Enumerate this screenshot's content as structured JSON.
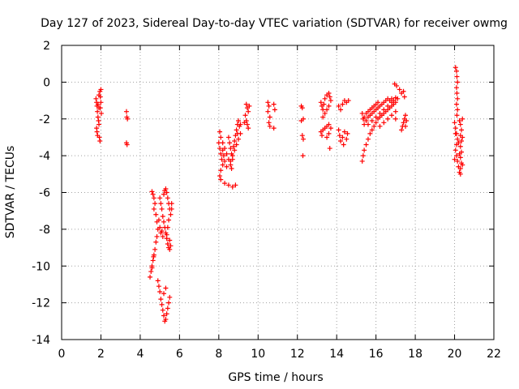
{
  "chart_data": {
    "type": "scatter",
    "title": "Day 127 of 2023, Sidereal Day-to-day VTEC variation (SDTVAR) for receiver owmg",
    "xlabel": "GPS time / hours",
    "ylabel": "SDTVAR / TECUs",
    "xlim": [
      0,
      22
    ],
    "ylim": [
      -14,
      2
    ],
    "xticks": [
      0,
      2,
      4,
      6,
      8,
      10,
      12,
      14,
      16,
      18,
      20,
      22
    ],
    "yticks": [
      2,
      0,
      -2,
      -4,
      -6,
      -8,
      -10,
      -12,
      -14
    ],
    "grid": true,
    "marker": "+",
    "series": [
      {
        "name": "SDTVAR",
        "color": "#ff0000",
        "points": [
          [
            1.75,
            -0.9
          ],
          [
            1.78,
            -1.1
          ],
          [
            1.8,
            -1.3
          ],
          [
            1.82,
            -1.6
          ],
          [
            1.85,
            -1.9
          ],
          [
            1.88,
            -2.1
          ],
          [
            1.9,
            -2.3
          ],
          [
            1.78,
            -2.5
          ],
          [
            1.8,
            -2.7
          ],
          [
            1.83,
            -2.9
          ],
          [
            1.9,
            -0.7
          ],
          [
            1.95,
            -0.5
          ],
          [
            2.0,
            -0.4
          ],
          [
            1.97,
            -0.8
          ],
          [
            2.0,
            -1.1
          ],
          [
            1.97,
            -1.4
          ],
          [
            2.02,
            -1.7
          ],
          [
            1.92,
            -3.0
          ],
          [
            1.95,
            -3.2
          ],
          [
            1.9,
            -1.4
          ],
          [
            1.85,
            -1.2
          ],
          [
            3.3,
            -1.6
          ],
          [
            3.32,
            -1.9
          ],
          [
            3.35,
            -2.0
          ],
          [
            3.3,
            -3.3
          ],
          [
            3.33,
            -3.4
          ],
          [
            4.6,
            -5.95
          ],
          [
            4.65,
            -6.1
          ],
          [
            4.7,
            -6.3
          ],
          [
            4.75,
            -6.6
          ],
          [
            4.7,
            -6.9
          ],
          [
            4.8,
            -7.2
          ],
          [
            4.85,
            -7.6
          ],
          [
            4.9,
            -8.0
          ],
          [
            4.85,
            -8.4
          ],
          [
            4.8,
            -8.7
          ],
          [
            4.75,
            -9.1
          ],
          [
            4.7,
            -9.4
          ],
          [
            4.65,
            -9.7
          ],
          [
            4.6,
            -10.0
          ],
          [
            4.55,
            -10.3
          ],
          [
            4.5,
            -10.6
          ],
          [
            4.6,
            -10.1
          ],
          [
            4.68,
            -9.5
          ],
          [
            4.9,
            -10.8
          ],
          [
            4.95,
            -11.1
          ],
          [
            5.0,
            -11.4
          ],
          [
            5.05,
            -11.8
          ],
          [
            5.1,
            -12.1
          ],
          [
            5.15,
            -12.4
          ],
          [
            5.2,
            -12.7
          ],
          [
            5.25,
            -13.0
          ],
          [
            5.3,
            -12.9
          ],
          [
            5.35,
            -12.6
          ],
          [
            5.4,
            -12.3
          ],
          [
            5.45,
            -12.0
          ],
          [
            5.5,
            -11.7
          ],
          [
            5.2,
            -11.5
          ],
          [
            5.3,
            -11.2
          ],
          [
            5.0,
            -6.3
          ],
          [
            5.05,
            -6.6
          ],
          [
            5.1,
            -6.9
          ],
          [
            5.15,
            -7.3
          ],
          [
            5.2,
            -7.6
          ],
          [
            5.25,
            -7.9
          ],
          [
            5.3,
            -8.2
          ],
          [
            5.35,
            -8.5
          ],
          [
            5.4,
            -8.8
          ],
          [
            5.45,
            -9.0
          ],
          [
            5.5,
            -9.1
          ],
          [
            5.2,
            -6.1
          ],
          [
            5.25,
            -5.9
          ],
          [
            5.3,
            -5.8
          ],
          [
            5.35,
            -6.0
          ],
          [
            5.4,
            -6.3
          ],
          [
            5.45,
            -6.6
          ],
          [
            5.5,
            -6.9
          ],
          [
            5.55,
            -7.2
          ],
          [
            5.45,
            -7.5
          ],
          [
            5.4,
            -7.9
          ],
          [
            5.35,
            -8.3
          ],
          [
            5.5,
            -8.6
          ],
          [
            5.55,
            -8.9
          ],
          [
            5.1,
            -8.1
          ],
          [
            5.15,
            -8.4
          ],
          [
            5.0,
            -7.9
          ],
          [
            5.05,
            -8.2
          ],
          [
            4.95,
            -7.5
          ],
          [
            5.6,
            -6.6
          ],
          [
            5.6,
            -6.9
          ],
          [
            8.05,
            -2.7
          ],
          [
            8.1,
            -3.0
          ],
          [
            8.0,
            -3.3
          ],
          [
            8.05,
            -3.6
          ],
          [
            8.1,
            -3.9
          ],
          [
            8.15,
            -4.2
          ],
          [
            8.2,
            -4.5
          ],
          [
            8.1,
            -4.8
          ],
          [
            8.05,
            -5.1
          ],
          [
            8.1,
            -5.3
          ],
          [
            8.3,
            -5.5
          ],
          [
            8.5,
            -5.6
          ],
          [
            8.7,
            -5.7
          ],
          [
            8.85,
            -5.6
          ],
          [
            8.2,
            -3.3
          ],
          [
            8.3,
            -3.6
          ],
          [
            8.4,
            -3.9
          ],
          [
            8.5,
            -4.2
          ],
          [
            8.6,
            -4.5
          ],
          [
            8.65,
            -4.7
          ],
          [
            8.4,
            -4.6
          ],
          [
            8.3,
            -4.3
          ],
          [
            8.25,
            -4.0
          ],
          [
            8.2,
            -3.7
          ],
          [
            8.5,
            -3.0
          ],
          [
            8.55,
            -3.3
          ],
          [
            8.6,
            -3.6
          ],
          [
            8.65,
            -3.9
          ],
          [
            8.7,
            -4.2
          ],
          [
            8.75,
            -3.5
          ],
          [
            8.8,
            -3.2
          ],
          [
            8.85,
            -2.9
          ],
          [
            8.9,
            -2.6
          ],
          [
            8.95,
            -2.3
          ],
          [
            9.0,
            -2.1
          ],
          [
            9.05,
            -2.4
          ],
          [
            9.1,
            -2.8
          ],
          [
            9.0,
            -3.1
          ],
          [
            8.9,
            -3.4
          ],
          [
            8.8,
            -3.7
          ],
          [
            8.7,
            -4.0
          ],
          [
            8.6,
            -4.3
          ],
          [
            9.1,
            -2.3
          ],
          [
            8.95,
            -2.8
          ],
          [
            9.4,
            -1.2
          ],
          [
            9.45,
            -1.4
          ],
          [
            9.5,
            -1.6
          ],
          [
            9.35,
            -1.8
          ],
          [
            9.4,
            -2.1
          ],
          [
            9.45,
            -2.3
          ],
          [
            9.5,
            -2.5
          ],
          [
            9.3,
            -2.2
          ],
          [
            9.55,
            -1.3
          ],
          [
            10.5,
            -1.1
          ],
          [
            10.55,
            -1.3
          ],
          [
            10.5,
            -1.6
          ],
          [
            10.6,
            -1.9
          ],
          [
            10.55,
            -2.2
          ],
          [
            10.6,
            -2.4
          ],
          [
            10.8,
            -1.2
          ],
          [
            10.85,
            -1.5
          ],
          [
            10.8,
            -2.5
          ],
          [
            12.2,
            -1.3
          ],
          [
            12.25,
            -1.4
          ],
          [
            12.3,
            -2.0
          ],
          [
            12.2,
            -2.1
          ],
          [
            12.25,
            -2.9
          ],
          [
            12.3,
            -3.1
          ],
          [
            12.28,
            -4.0
          ],
          [
            13.2,
            -1.1
          ],
          [
            13.25,
            -1.3
          ],
          [
            13.3,
            -1.5
          ],
          [
            13.35,
            -1.2
          ],
          [
            13.4,
            -0.9
          ],
          [
            13.5,
            -0.7
          ],
          [
            13.6,
            -0.6
          ],
          [
            13.65,
            -0.8
          ],
          [
            13.7,
            -1.0
          ],
          [
            13.6,
            -1.3
          ],
          [
            13.5,
            -1.5
          ],
          [
            13.4,
            -1.7
          ],
          [
            13.3,
            -1.9
          ],
          [
            13.2,
            -2.7
          ],
          [
            13.25,
            -2.9
          ],
          [
            13.3,
            -2.6
          ],
          [
            13.4,
            -2.5
          ],
          [
            13.5,
            -2.4
          ],
          [
            13.6,
            -2.3
          ],
          [
            13.7,
            -2.5
          ],
          [
            13.6,
            -2.8
          ],
          [
            13.5,
            -3.0
          ],
          [
            13.65,
            -3.6
          ],
          [
            14.1,
            -1.3
          ],
          [
            14.2,
            -1.5
          ],
          [
            14.3,
            -1.2
          ],
          [
            14.4,
            -1.0
          ],
          [
            14.5,
            -1.1
          ],
          [
            14.1,
            -2.6
          ],
          [
            14.15,
            -2.9
          ],
          [
            14.2,
            -3.2
          ],
          [
            14.3,
            -3.0
          ],
          [
            14.4,
            -2.7
          ],
          [
            14.5,
            -3.1
          ],
          [
            14.55,
            -2.8
          ],
          [
            14.35,
            -3.4
          ],
          [
            14.6,
            -1.0
          ],
          [
            15.3,
            -1.7
          ],
          [
            15.35,
            -2.0
          ],
          [
            15.4,
            -2.3
          ],
          [
            15.5,
            -2.1
          ],
          [
            15.6,
            -1.9
          ],
          [
            15.7,
            -1.8
          ],
          [
            15.8,
            -1.7
          ],
          [
            15.9,
            -1.6
          ],
          [
            16.0,
            -1.5
          ],
          [
            16.1,
            -1.4
          ],
          [
            16.2,
            -1.3
          ],
          [
            16.3,
            -1.2
          ],
          [
            16.4,
            -1.1
          ],
          [
            16.5,
            -1.0
          ],
          [
            16.6,
            -0.9
          ],
          [
            16.7,
            -1.0
          ],
          [
            16.8,
            -0.9
          ],
          [
            16.9,
            -1.0
          ],
          [
            17.0,
            -0.85
          ],
          [
            17.1,
            -0.9
          ],
          [
            15.4,
            -1.9
          ],
          [
            15.5,
            -1.7
          ],
          [
            15.6,
            -1.6
          ],
          [
            15.7,
            -1.5
          ],
          [
            15.8,
            -1.4
          ],
          [
            15.9,
            -1.3
          ],
          [
            16.0,
            -1.2
          ],
          [
            16.1,
            -1.1
          ],
          [
            15.3,
            -4.3
          ],
          [
            15.35,
            -4.0
          ],
          [
            15.4,
            -3.7
          ],
          [
            15.5,
            -3.4
          ],
          [
            15.6,
            -3.1
          ],
          [
            15.7,
            -2.8
          ],
          [
            15.8,
            -2.6
          ],
          [
            15.9,
            -2.4
          ],
          [
            16.0,
            -2.2
          ],
          [
            16.1,
            -2.0
          ],
          [
            16.2,
            -1.9
          ],
          [
            16.3,
            -1.8
          ],
          [
            16.4,
            -1.7
          ],
          [
            16.5,
            -1.6
          ],
          [
            16.6,
            -1.5
          ],
          [
            16.7,
            -1.4
          ],
          [
            16.8,
            -1.3
          ],
          [
            16.9,
            -1.2
          ],
          [
            17.0,
            -1.1
          ],
          [
            15.6,
            -2.3
          ],
          [
            15.8,
            -2.1
          ],
          [
            16.0,
            -1.9
          ],
          [
            16.2,
            -1.7
          ],
          [
            16.4,
            -1.5
          ],
          [
            16.6,
            -1.3
          ],
          [
            16.8,
            -1.1
          ],
          [
            16.2,
            -2.4
          ],
          [
            16.4,
            -2.2
          ],
          [
            16.6,
            -2.0
          ],
          [
            16.8,
            -1.8
          ],
          [
            17.0,
            -1.6
          ],
          [
            17.0,
            -2.0
          ],
          [
            16.95,
            -0.1
          ],
          [
            17.05,
            -0.2
          ],
          [
            17.2,
            -0.4
          ],
          [
            17.3,
            -0.6
          ],
          [
            17.4,
            -0.5
          ],
          [
            17.45,
            -0.8
          ],
          [
            17.3,
            -2.6
          ],
          [
            17.35,
            -2.4
          ],
          [
            17.4,
            -2.2
          ],
          [
            17.45,
            -2.0
          ],
          [
            17.5,
            -1.8
          ],
          [
            17.55,
            -2.1
          ],
          [
            17.5,
            -2.4
          ],
          [
            20.05,
            0.8
          ],
          [
            20.1,
            0.6
          ],
          [
            20.12,
            0.3
          ],
          [
            20.15,
            0.0
          ],
          [
            20.1,
            -0.3
          ],
          [
            20.12,
            -0.6
          ],
          [
            20.15,
            -0.9
          ],
          [
            20.1,
            -1.2
          ],
          [
            20.15,
            -1.5
          ],
          [
            20.12,
            -1.8
          ],
          [
            20.0,
            -2.2
          ],
          [
            20.05,
            -2.5
          ],
          [
            20.1,
            -2.8
          ],
          [
            20.15,
            -3.1
          ],
          [
            20.1,
            -3.4
          ],
          [
            20.05,
            -3.7
          ],
          [
            20.1,
            -4.0
          ],
          [
            20.15,
            -4.3
          ],
          [
            20.2,
            -4.6
          ],
          [
            20.25,
            -4.9
          ],
          [
            20.3,
            -5.0
          ],
          [
            20.3,
            -4.7
          ],
          [
            20.35,
            -4.4
          ],
          [
            20.3,
            -4.1
          ],
          [
            20.35,
            -3.8
          ],
          [
            20.3,
            -3.5
          ],
          [
            20.35,
            -3.2
          ],
          [
            20.3,
            -2.9
          ],
          [
            20.35,
            -2.6
          ],
          [
            20.3,
            -2.3
          ],
          [
            20.25,
            -2.1
          ],
          [
            20.4,
            -2.0
          ],
          [
            20.4,
            -3.0
          ],
          [
            20.4,
            -4.5
          ],
          [
            20.0,
            -4.2
          ],
          [
            20.05,
            -2.8
          ],
          [
            20.2,
            -3.3
          ],
          [
            20.25,
            -3.9
          ]
        ]
      }
    ]
  }
}
